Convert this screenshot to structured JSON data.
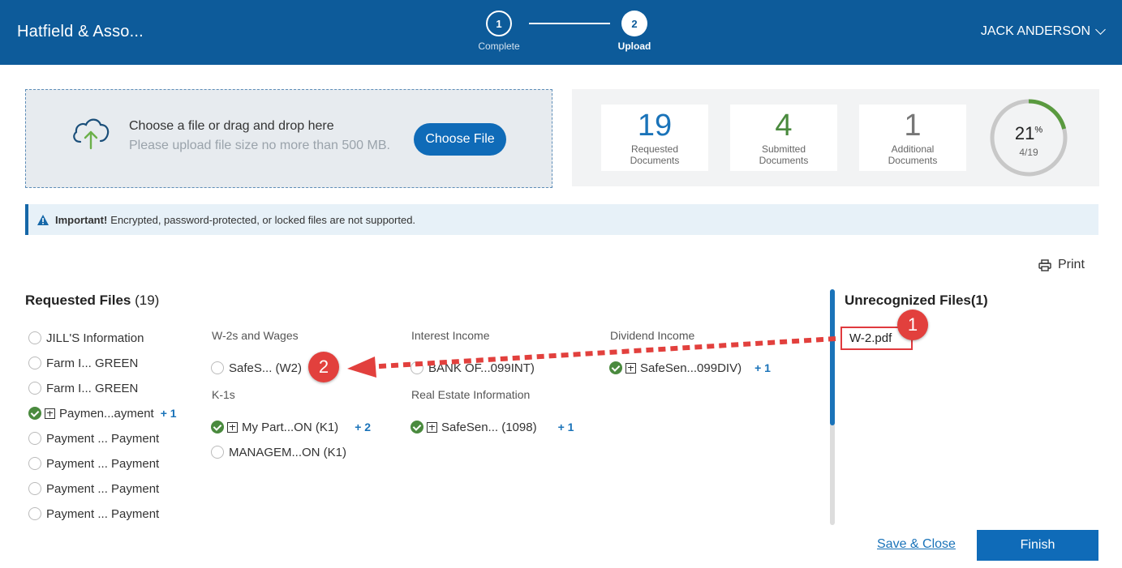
{
  "header": {
    "brand": "Hatfield & Asso...",
    "user": "JACK ANDERSON",
    "steps": [
      {
        "number": "1",
        "label": "Complete"
      },
      {
        "number": "2",
        "label": "Upload"
      }
    ]
  },
  "upload": {
    "title": "Choose a file or drag and drop here",
    "hint": "Please upload file size no more than 500 MB.",
    "button": "Choose File"
  },
  "stats": {
    "requested": {
      "value": "19",
      "caption_line1": "Requested",
      "caption_line2": "Documents"
    },
    "submitted": {
      "value": "4",
      "caption_line1": "Submitted",
      "caption_line2": "Documents"
    },
    "additional": {
      "value": "1",
      "caption_line1": "Additional",
      "caption_line2": "Documents"
    },
    "progress": {
      "percent": "21",
      "percent_sign": "%",
      "fraction": "4/19",
      "progress_fraction": 0.21
    }
  },
  "notice": {
    "strong": "Important!",
    "text": "Encrypted, password-protected, or locked files are not supported."
  },
  "print_label": "Print",
  "requested_files": {
    "title": "Requested Files",
    "count": "(19)",
    "left_column": [
      {
        "label": "JILL'S Information",
        "status": "empty"
      },
      {
        "label": "Farm I... GREEN",
        "status": "empty"
      },
      {
        "label": "Farm I... GREEN",
        "status": "empty"
      },
      {
        "label": "Paymen...ayment",
        "status": "done",
        "extra": "+ 1"
      },
      {
        "label": "Payment ... Payment",
        "status": "empty"
      },
      {
        "label": "Payment ... Payment",
        "status": "empty"
      },
      {
        "label": "Payment ... Payment",
        "status": "empty"
      },
      {
        "label": "Payment ... Payment",
        "status": "empty"
      }
    ],
    "categories": {
      "w2": {
        "title": "W-2s and Wages",
        "items": [
          {
            "label": "SafeS... (W2)",
            "status": "empty"
          }
        ]
      },
      "k1": {
        "title": "K-1s",
        "items": [
          {
            "label": "My Part...ON (K1)",
            "status": "done",
            "extra": "+ 2"
          },
          {
            "label": "MANAGEM...ON (K1)",
            "status": "empty"
          }
        ]
      },
      "interest": {
        "title": "Interest Income",
        "items": [
          {
            "label": "BANK OF...099INT)",
            "status": "empty"
          }
        ]
      },
      "real_estate": {
        "title": "Real Estate Information",
        "items": [
          {
            "label": "SafeSen... (1098)",
            "status": "done",
            "extra": "+ 1"
          }
        ]
      },
      "dividend": {
        "title": "Dividend Income",
        "items": [
          {
            "label": "SafeSen...099DIV)",
            "status": "done",
            "extra": "+ 1"
          }
        ]
      }
    }
  },
  "unrecognized": {
    "title": "Unrecognized Files(1)",
    "files": [
      "W-2.pdf"
    ]
  },
  "annotations": {
    "badge1": "1",
    "badge2": "2",
    "color": "#e2403d"
  },
  "footer": {
    "save": "Save & Close",
    "finish": "Finish"
  }
}
